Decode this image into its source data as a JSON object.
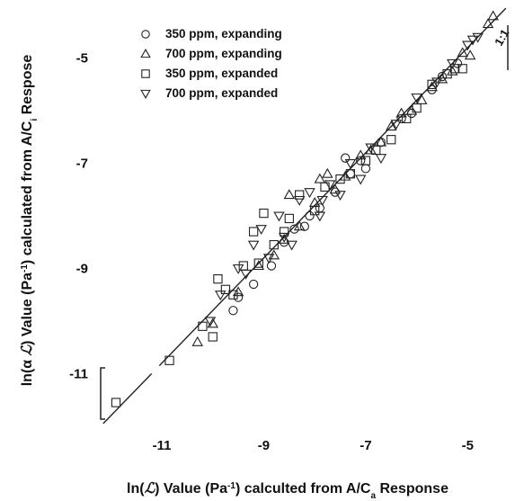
{
  "chart_data": {
    "type": "scatter",
    "xlabel_parts": [
      "ln(",
      "ℒ",
      ") Value (Pa",
      "-1",
      ") calculted from A/C",
      "a",
      " Response"
    ],
    "ylabel_parts": [
      "ln(α ",
      "ℒ",
      ") Value (Pa",
      "-1",
      ") calculated from A/C",
      "i",
      " Respose"
    ],
    "x_ticks": [
      -11,
      -9,
      -7,
      -5
    ],
    "y_ticks": [
      -5,
      -7,
      -9,
      -11
    ],
    "x_tick_labels": [
      "-11",
      "-9",
      "-7",
      "-5"
    ],
    "y_tick_labels": [
      "-5",
      "-7",
      "-9",
      "-11"
    ],
    "xlim": [
      -12.2,
      -4.3
    ],
    "ylim": [
      -11.9,
      -4.1
    ],
    "reference_line": {
      "label": "1:1",
      "from": [
        -12.15,
        -11.95
      ],
      "to": [
        -4.25,
        -4.05
      ]
    },
    "legend_position": "top-left",
    "grid": false,
    "series": [
      {
        "name": "350 ppm, expanding",
        "marker": "circle",
        "points": [
          [
            -9.6,
            -9.8
          ],
          [
            -9.5,
            -9.55
          ],
          [
            -9.2,
            -9.3
          ],
          [
            -8.85,
            -8.95
          ],
          [
            -8.6,
            -8.5
          ],
          [
            -8.4,
            -8.25
          ],
          [
            -8.1,
            -8.0
          ],
          [
            -7.9,
            -7.85
          ],
          [
            -7.6,
            -7.55
          ],
          [
            -7.3,
            -7.2
          ],
          [
            -7.1,
            -6.95
          ],
          [
            -7.0,
            -7.1
          ],
          [
            -6.7,
            -6.6
          ],
          [
            -6.3,
            -6.15
          ],
          [
            -6.1,
            -6.05
          ],
          [
            -5.7,
            -5.6
          ],
          [
            -5.5,
            -5.35
          ],
          [
            -5.2,
            -5.1
          ],
          [
            -7.4,
            -6.9
          ],
          [
            -8.2,
            -8.2
          ]
        ]
      },
      {
        "name": "700 ppm, expanding",
        "marker": "triangle-up",
        "points": [
          [
            -10.3,
            -10.4
          ],
          [
            -10.0,
            -10.05
          ],
          [
            -9.5,
            -9.45
          ],
          [
            -9.1,
            -8.95
          ],
          [
            -8.8,
            -8.75
          ],
          [
            -8.6,
            -8.45
          ],
          [
            -8.3,
            -8.2
          ],
          [
            -8.0,
            -7.75
          ],
          [
            -7.75,
            -7.2
          ],
          [
            -7.6,
            -7.5
          ],
          [
            -7.4,
            -7.25
          ],
          [
            -7.1,
            -6.85
          ],
          [
            -6.9,
            -6.75
          ],
          [
            -6.7,
            -6.6
          ],
          [
            -6.5,
            -6.3
          ],
          [
            -6.3,
            -6.05
          ],
          [
            -6.1,
            -6.0
          ],
          [
            -5.9,
            -5.8
          ],
          [
            -5.7,
            -5.55
          ],
          [
            -5.5,
            -5.4
          ],
          [
            -5.3,
            -5.25
          ],
          [
            -5.1,
            -4.9
          ],
          [
            -4.95,
            -4.95
          ],
          [
            -4.6,
            -4.35
          ],
          [
            -4.5,
            -4.2
          ],
          [
            -8.5,
            -7.6
          ],
          [
            -7.9,
            -7.3
          ]
        ]
      },
      {
        "name": "350 ppm, expanded",
        "marker": "square",
        "points": [
          [
            -11.9,
            -11.55
          ],
          [
            -10.85,
            -10.75
          ],
          [
            -10.2,
            -10.1
          ],
          [
            -10.0,
            -10.3
          ],
          [
            -9.75,
            -9.4
          ],
          [
            -9.4,
            -8.95
          ],
          [
            -9.2,
            -8.3
          ],
          [
            -9.0,
            -7.95
          ],
          [
            -8.8,
            -8.55
          ],
          [
            -8.5,
            -8.05
          ],
          [
            -8.3,
            -7.6
          ],
          [
            -8.0,
            -7.9
          ],
          [
            -7.8,
            -7.45
          ],
          [
            -7.5,
            -7.3
          ],
          [
            -7.3,
            -7.2
          ],
          [
            -7.0,
            -6.95
          ],
          [
            -6.8,
            -6.75
          ],
          [
            -6.5,
            -6.55
          ],
          [
            -6.2,
            -6.15
          ],
          [
            -6.0,
            -5.95
          ],
          [
            -5.7,
            -5.5
          ],
          [
            -5.4,
            -5.3
          ],
          [
            -5.25,
            -5.2
          ],
          [
            -5.1,
            -5.2
          ],
          [
            -9.1,
            -8.9
          ],
          [
            -8.6,
            -8.3
          ],
          [
            -9.6,
            -9.5
          ],
          [
            -9.9,
            -9.2
          ]
        ]
      },
      {
        "name": "700 ppm, expanded",
        "marker": "triangle-down",
        "points": [
          [
            -10.05,
            -10.0
          ],
          [
            -9.85,
            -9.5
          ],
          [
            -9.5,
            -9.0
          ],
          [
            -9.2,
            -8.55
          ],
          [
            -9.05,
            -8.25
          ],
          [
            -8.9,
            -8.8
          ],
          [
            -8.7,
            -8.0
          ],
          [
            -8.45,
            -8.55
          ],
          [
            -8.3,
            -7.7
          ],
          [
            -8.1,
            -7.55
          ],
          [
            -7.9,
            -8.0
          ],
          [
            -7.7,
            -7.4
          ],
          [
            -7.5,
            -7.6
          ],
          [
            -7.3,
            -7.0
          ],
          [
            -7.1,
            -7.3
          ],
          [
            -6.9,
            -6.7
          ],
          [
            -6.7,
            -6.9
          ],
          [
            -6.4,
            -6.25
          ],
          [
            -6.0,
            -5.75
          ],
          [
            -5.6,
            -5.45
          ],
          [
            -5.3,
            -5.1
          ],
          [
            -5.0,
            -4.75
          ],
          [
            -4.8,
            -4.6
          ],
          [
            -4.9,
            -4.65
          ],
          [
            -9.35,
            -9.1
          ],
          [
            -8.6,
            -8.4
          ],
          [
            -7.85,
            -7.7
          ]
        ]
      }
    ]
  }
}
